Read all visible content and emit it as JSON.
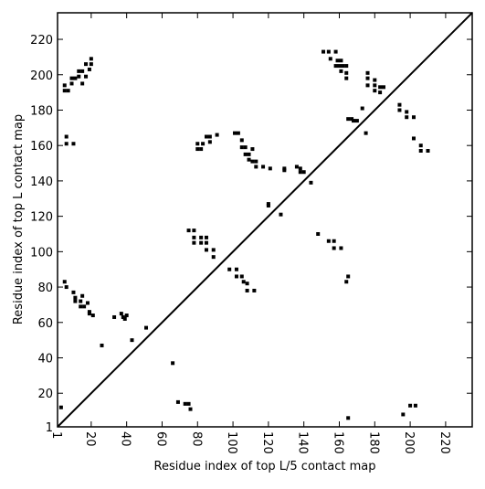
{
  "chart_data": {
    "type": "scatter",
    "xlabel": "Residue index of top L/5 contact map",
    "ylabel": "Residue index of top L contact map",
    "xlim": [
      1,
      235
    ],
    "ylim": [
      1,
      235
    ],
    "xticks": [
      1,
      20,
      40,
      60,
      80,
      100,
      120,
      140,
      160,
      180,
      200,
      220
    ],
    "yticks": [
      1,
      20,
      40,
      60,
      80,
      100,
      120,
      140,
      160,
      180,
      200,
      220
    ],
    "color": "#000000",
    "x": [
      5,
      7,
      9,
      9,
      11,
      13,
      13,
      15,
      15,
      17,
      17,
      19,
      20,
      20,
      5,
      6,
      6,
      10,
      80,
      80,
      82,
      83,
      85,
      87,
      87,
      91,
      101,
      103,
      105,
      105,
      107,
      107,
      109,
      109,
      111,
      111,
      113,
      113,
      117,
      121,
      129,
      129,
      136,
      138,
      138,
      140,
      144,
      120,
      120,
      127,
      151,
      154,
      155,
      158,
      159,
      158,
      160,
      161,
      161,
      162,
      164,
      164,
      164,
      165,
      167,
      168,
      170,
      173,
      175,
      176,
      176,
      176,
      180,
      180,
      180,
      183,
      183,
      185,
      194,
      194,
      198,
      198,
      202,
      202,
      206,
      206,
      210,
      5,
      6,
      10,
      11,
      11,
      14,
      14,
      15,
      16,
      18,
      19,
      19,
      21,
      26,
      33,
      37,
      38,
      39,
      40,
      43,
      51,
      66,
      69,
      73,
      75,
      76,
      75,
      78,
      78,
      78,
      82,
      82,
      85,
      85,
      85,
      89,
      89,
      98,
      102,
      102,
      105,
      106,
      108,
      108,
      112,
      148,
      154,
      157,
      157,
      161,
      164,
      165,
      165,
      3,
      196,
      200,
      203
    ],
    "y": [
      194,
      191,
      195,
      198,
      198,
      202,
      199,
      202,
      195,
      206,
      199,
      203,
      206,
      209,
      191,
      165,
      161,
      161,
      158,
      161,
      158,
      161,
      165,
      165,
      162,
      166,
      167,
      167,
      163,
      159,
      159,
      155,
      155,
      152,
      158,
      151,
      151,
      148,
      148,
      147,
      146,
      147,
      148,
      147,
      145,
      145,
      139,
      127,
      126,
      121,
      213,
      213,
      209,
      213,
      208,
      205,
      205,
      208,
      202,
      205,
      205,
      198,
      201,
      175,
      175,
      174,
      174,
      181,
      167,
      198,
      201,
      194,
      197,
      194,
      191,
      193,
      190,
      193,
      180,
      183,
      179,
      176,
      176,
      164,
      160,
      157,
      157,
      83,
      80,
      77,
      74,
      72,
      72,
      69,
      75,
      69,
      71,
      66,
      65,
      64,
      47,
      63,
      65,
      63,
      62,
      64,
      50,
      57,
      37,
      15,
      14,
      14,
      11,
      112,
      112,
      108,
      105,
      108,
      105,
      108,
      105,
      101,
      101,
      97,
      90,
      90,
      86,
      86,
      83,
      82,
      78,
      78,
      110,
      106,
      102,
      106,
      102,
      83,
      86,
      6,
      12,
      8,
      13,
      13
    ]
  }
}
